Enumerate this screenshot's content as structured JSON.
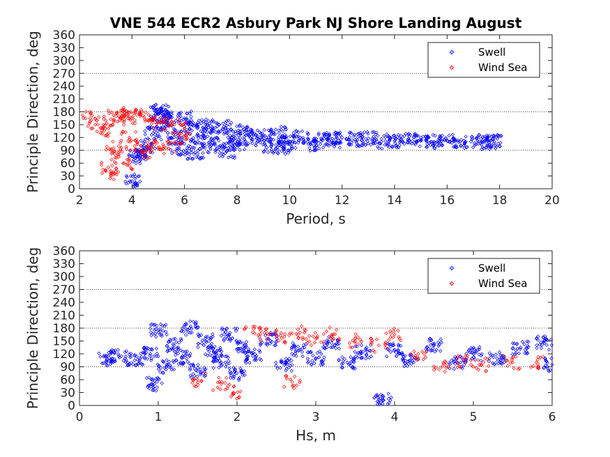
{
  "figure": {
    "title": "VNE 544 ECR2 Asbury Park NJ Shore Landing August",
    "legend_entries": [
      "Swell",
      "Wind Sea"
    ],
    "colors": {
      "swell": "#0000ff",
      "wind_sea": "#ff0000",
      "reference_line": "#000000"
    }
  },
  "chart_data": [
    {
      "type": "scatter",
      "xlabel": "Period, s",
      "ylabel": "Principle Direction, deg",
      "xlim": [
        2,
        20
      ],
      "ylim": [
        0,
        360
      ],
      "xticks": [
        2,
        4,
        6,
        8,
        10,
        12,
        14,
        16,
        18,
        20
      ],
      "yticks": [
        0,
        30,
        60,
        90,
        120,
        150,
        180,
        210,
        240,
        270,
        300,
        330,
        360
      ],
      "reference_lines_y": [
        90,
        180,
        270
      ],
      "grid": false,
      "legend": "top-right",
      "marker": "diamond",
      "series": [
        {
          "name": "Swell",
          "color": "#0000ff",
          "points": [
            [
              4.0,
              18
            ],
            [
              4.2,
              75
            ],
            [
              4.4,
              80
            ],
            [
              4.6,
              100
            ],
            [
              4.8,
              130
            ],
            [
              5.0,
              175
            ],
            [
              5.2,
              170
            ],
            [
              5.4,
              150
            ],
            [
              5.6,
              120
            ],
            [
              5.8,
              95
            ],
            [
              6.0,
              165
            ],
            [
              6.2,
              140
            ],
            [
              6.5,
              110
            ],
            [
              6.8,
              150
            ],
            [
              7.0,
              130
            ],
            [
              7.2,
              100
            ],
            [
              7.5,
              145
            ],
            [
              7.8,
              120
            ],
            [
              8.0,
              105
            ],
            [
              8.3,
              135
            ],
            [
              8.6,
              115
            ],
            [
              9.0,
              125
            ],
            [
              9.3,
              100
            ],
            [
              9.6,
              130
            ],
            [
              10.0,
              110
            ],
            [
              10.4,
              120
            ],
            [
              10.8,
              105
            ],
            [
              11.2,
              118
            ],
            [
              11.6,
              112
            ],
            [
              12.0,
              120
            ],
            [
              12.5,
              115
            ],
            [
              13.0,
              118
            ],
            [
              13.5,
              110
            ],
            [
              14.0,
              112
            ],
            [
              14.5,
              115
            ],
            [
              15.0,
              112
            ],
            [
              15.5,
              110
            ],
            [
              16.0,
              112
            ],
            [
              16.5,
              110
            ],
            [
              17.2,
              110
            ],
            [
              17.6,
              108
            ],
            [
              17.8,
              110
            ],
            [
              5.1,
              182
            ],
            [
              6.4,
              85
            ],
            [
              7.6,
              88
            ],
            [
              9.8,
              95
            ]
          ]
        },
        {
          "name": "Wind Sea",
          "color": "#ff0000",
          "points": [
            [
              2.4,
              165
            ],
            [
              2.6,
              150
            ],
            [
              2.8,
              130
            ],
            [
              3.0,
              160
            ],
            [
              3.1,
              50
            ],
            [
              3.2,
              35
            ],
            [
              3.3,
              95
            ],
            [
              3.4,
              170
            ],
            [
              3.5,
              80
            ],
            [
              3.6,
              165
            ],
            [
              3.7,
              60
            ],
            [
              3.8,
              175
            ],
            [
              3.9,
              120
            ],
            [
              4.0,
              165
            ],
            [
              4.1,
              100
            ],
            [
              4.3,
              170
            ],
            [
              4.5,
              85
            ],
            [
              4.7,
              160
            ],
            [
              4.9,
              110
            ],
            [
              5.1,
              155
            ],
            [
              5.3,
              95
            ],
            [
              5.5,
              150
            ],
            [
              5.8,
              120
            ],
            [
              6.0,
              140
            ]
          ]
        }
      ]
    },
    {
      "type": "scatter",
      "xlabel": "Hs, m",
      "ylabel": "Principle Direction, deg",
      "xlim": [
        0,
        6
      ],
      "ylim": [
        0,
        360
      ],
      "xticks": [
        0,
        1,
        2,
        3,
        4,
        5,
        6
      ],
      "yticks": [
        0,
        30,
        60,
        90,
        120,
        150,
        180,
        210,
        240,
        270,
        300,
        330,
        360
      ],
      "reference_lines_y": [
        90,
        180,
        270
      ],
      "grid": false,
      "legend": "top-right",
      "marker": "diamond",
      "series": [
        {
          "name": "Swell",
          "color": "#0000ff",
          "points": [
            [
              0.35,
              108
            ],
            [
              0.5,
              115
            ],
            [
              0.7,
              105
            ],
            [
              0.9,
              120
            ],
            [
              0.95,
              50
            ],
            [
              1.0,
              175
            ],
            [
              1.1,
              90
            ],
            [
              1.2,
              140
            ],
            [
              1.3,
              110
            ],
            [
              1.4,
              180
            ],
            [
              1.5,
              80
            ],
            [
              1.6,
              150
            ],
            [
              1.7,
              125
            ],
            [
              1.8,
              100
            ],
            [
              1.9,
              165
            ],
            [
              2.0,
              75
            ],
            [
              2.1,
              135
            ],
            [
              2.2,
              115
            ],
            [
              2.4,
              155
            ],
            [
              2.6,
              95
            ],
            [
              2.8,
              130
            ],
            [
              3.0,
              110
            ],
            [
              3.2,
              145
            ],
            [
              3.4,
              100
            ],
            [
              3.6,
              125
            ],
            [
              3.85,
              18
            ],
            [
              4.0,
              130
            ],
            [
              4.2,
              105
            ],
            [
              4.5,
              140
            ],
            [
              4.8,
              100
            ],
            [
              5.0,
              120
            ],
            [
              5.3,
              110
            ],
            [
              5.6,
              135
            ],
            [
              5.9,
              145
            ],
            [
              6.0,
              95
            ]
          ]
        },
        {
          "name": "Wind Sea",
          "color": "#ff0000",
          "points": [
            [
              1.5,
              60
            ],
            [
              1.8,
              50
            ],
            [
              1.95,
              30
            ],
            [
              2.2,
              170
            ],
            [
              2.4,
              165
            ],
            [
              2.6,
              160
            ],
            [
              2.8,
              170
            ],
            [
              3.0,
              155
            ],
            [
              3.2,
              165
            ],
            [
              3.5,
              150
            ],
            [
              3.8,
              140
            ],
            [
              4.0,
              165
            ],
            [
              4.3,
              120
            ],
            [
              4.6,
              90
            ],
            [
              4.9,
              100
            ],
            [
              5.1,
              95
            ],
            [
              5.5,
              100
            ],
            [
              5.8,
              100
            ],
            [
              2.7,
              55
            ]
          ]
        }
      ]
    }
  ]
}
